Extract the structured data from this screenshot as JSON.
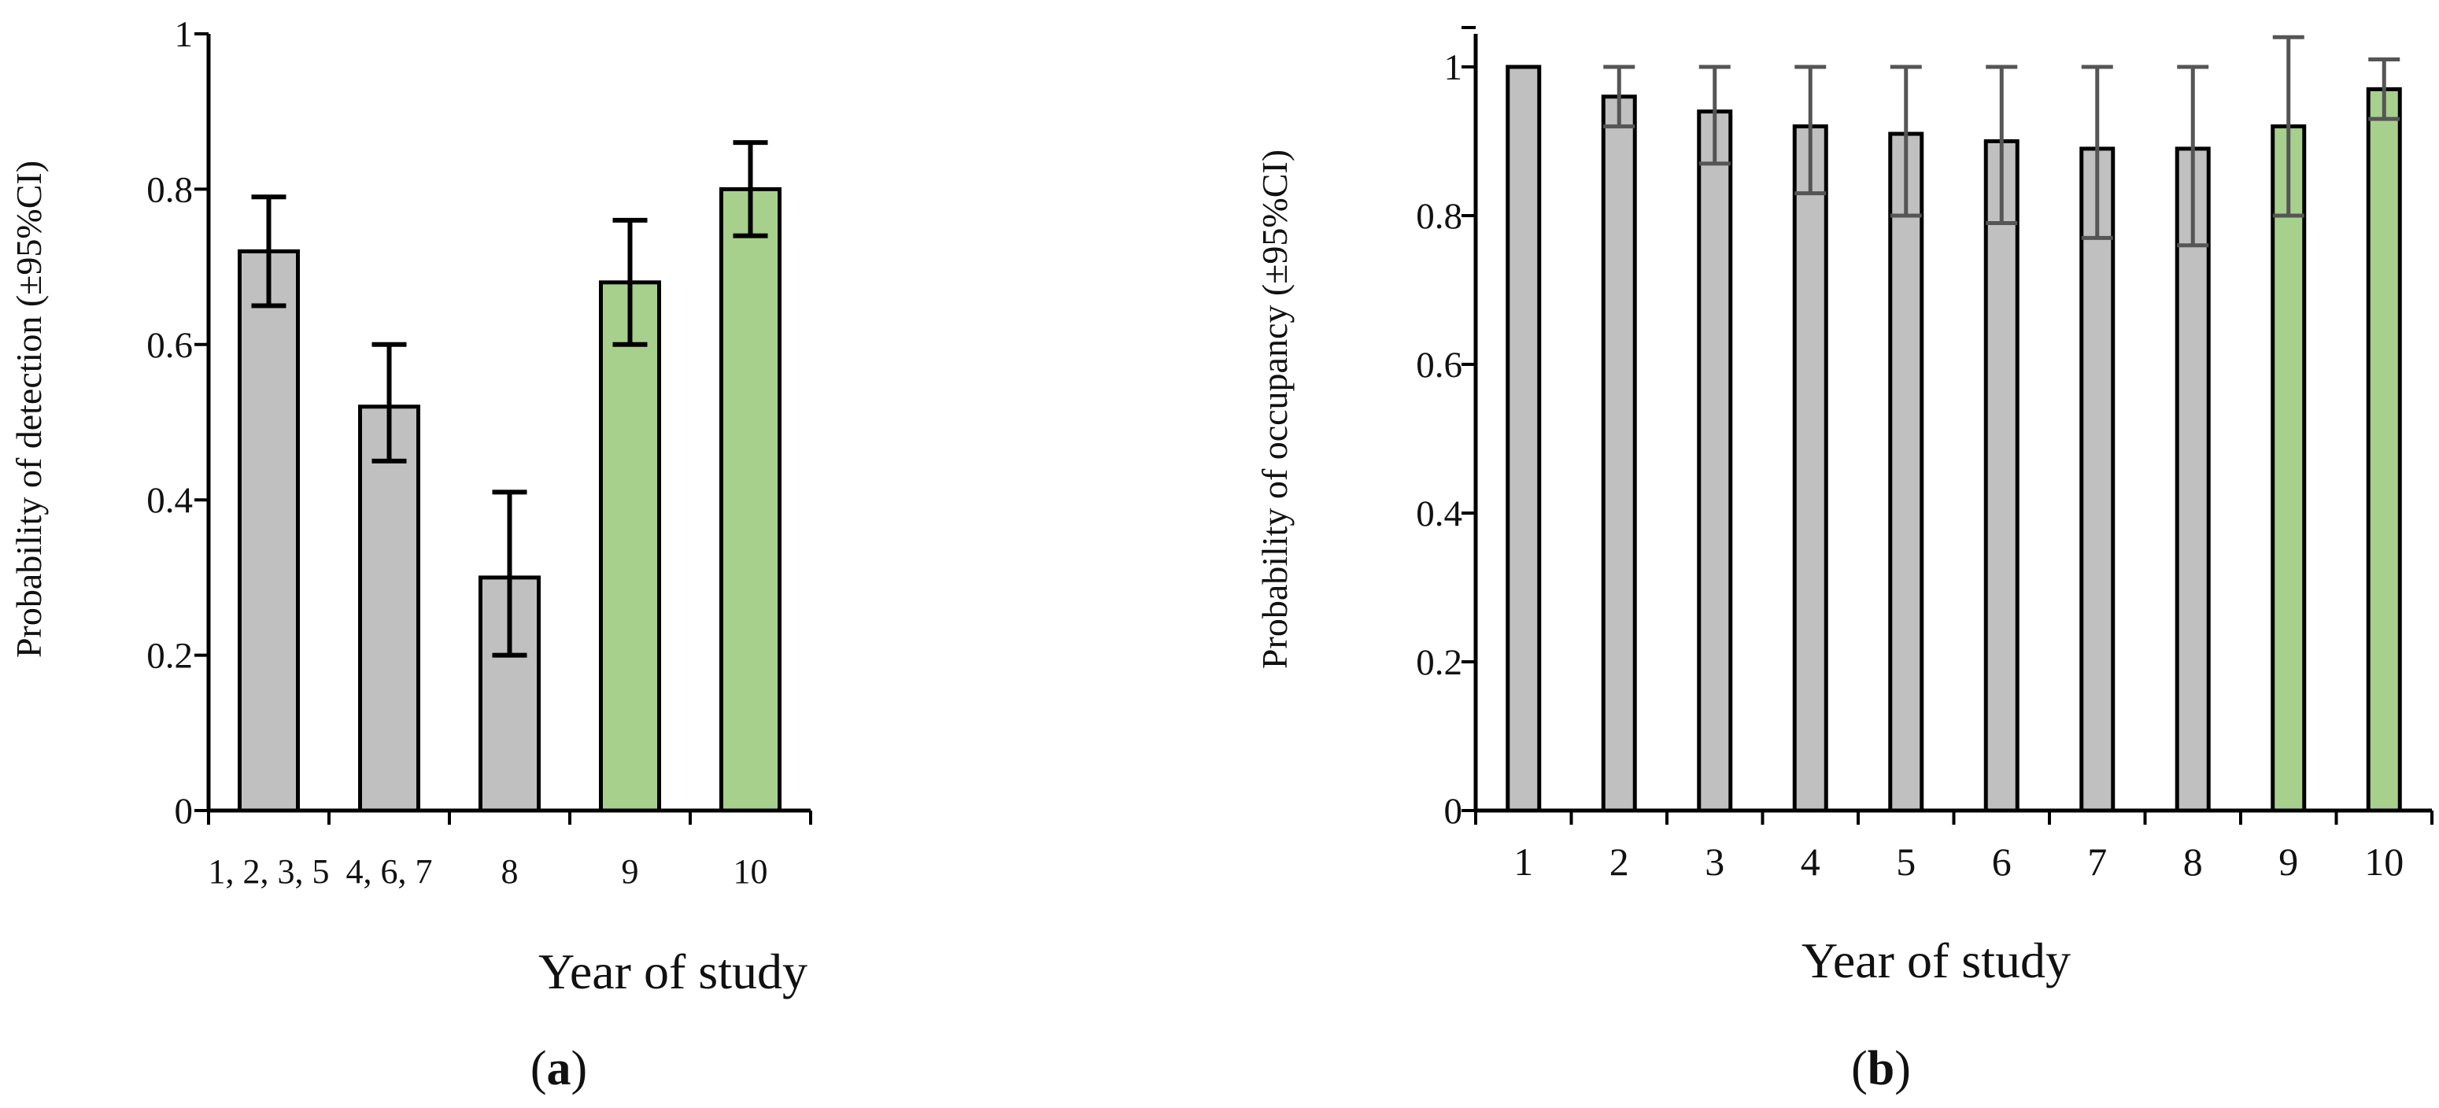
{
  "colors": {
    "grey_bar": "#c0c0c0",
    "green_bar": "#a8d08d",
    "axis": "#000000",
    "error_bar_a": "#000000",
    "error_bar_b": "#555555"
  },
  "chart_data": [
    {
      "id": "a",
      "type": "bar",
      "panel_label": "a",
      "title": "",
      "xlabel": "Year of study",
      "ylabel": "Probability of detection (±95%CI)",
      "ylim": [
        0,
        1
      ],
      "yticks": [
        "0",
        "0.2",
        "0.4",
        "0.6",
        "0.8",
        "1"
      ],
      "categories": [
        "1, 2, 3, 5",
        "4, 6, 7",
        "8",
        "9",
        "10"
      ],
      "values": [
        0.72,
        0.52,
        0.3,
        0.68,
        0.8
      ],
      "ci_lower": [
        0.65,
        0.45,
        0.2,
        0.6,
        0.74
      ],
      "ci_upper": [
        0.79,
        0.6,
        0.41,
        0.76,
        0.86
      ],
      "bar_colors": [
        "grey",
        "grey",
        "grey",
        "green",
        "green"
      ]
    },
    {
      "id": "b",
      "type": "bar",
      "panel_label": "b",
      "title": "",
      "xlabel": "Year of study",
      "ylabel": "Probability of occupancy (±95%CI)",
      "ylim": [
        0,
        1.05
      ],
      "yticks": [
        "0",
        "0.2",
        "0.4",
        "0.6",
        "0.8",
        "1"
      ],
      "categories": [
        "1",
        "2",
        "3",
        "4",
        "5",
        "6",
        "7",
        "8",
        "9",
        "10"
      ],
      "values": [
        1.0,
        0.96,
        0.94,
        0.92,
        0.91,
        0.9,
        0.89,
        0.89,
        0.92,
        0.97
      ],
      "ci_lower": [
        1.0,
        0.92,
        0.87,
        0.83,
        0.8,
        0.79,
        0.77,
        0.76,
        0.8,
        0.93
      ],
      "ci_upper": [
        1.0,
        1.0,
        1.0,
        1.0,
        1.0,
        1.0,
        1.0,
        1.0,
        1.04,
        1.01
      ],
      "bar_colors": [
        "grey",
        "grey",
        "grey",
        "grey",
        "grey",
        "grey",
        "grey",
        "grey",
        "green",
        "green"
      ]
    }
  ]
}
